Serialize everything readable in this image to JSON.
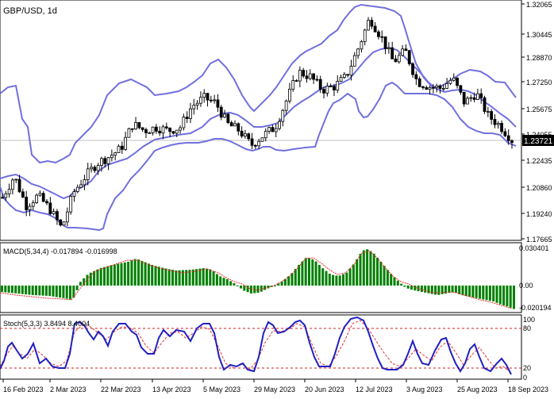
{
  "chart_title": "GBP/USD, 1d",
  "colors": {
    "background": "#ffffff",
    "price_line": "#000000",
    "bollinger": "#7070e0",
    "macd_hist": "#008000",
    "macd_signal": "#e03030",
    "stoch_main": "#2020c0",
    "stoch_signal": "#e03030",
    "level_line": "#d02020",
    "current_price_bg": "#000000",
    "current_price_text": "#ffffff"
  },
  "price_axis": {
    "ticks": [
      "1.32065",
      "1.30445",
      "1.28870",
      "1.27250",
      "1.25675",
      "1.24055",
      "1.22435",
      "1.20860",
      "1.19240",
      "1.17665"
    ],
    "current_price": "1.23721"
  },
  "x_axis": {
    "labels": [
      "16 Feb 2023",
      "2 Mar 2023",
      "22 Mar 2023",
      "13 Apr 2023",
      "5 May 2023",
      "29 May 2023",
      "20 Jun 2023",
      "12 Jul 2023",
      "3 Aug 2023",
      "25 Aug 2023",
      "18 Sep 2023"
    ]
  },
  "macd": {
    "label": "MACD(5,34,4) -0.017894 -0.016998",
    "ticks": [
      "0.030401",
      "0.00",
      "-0.020194"
    ]
  },
  "stoch": {
    "label": "Stoch(5,3,3) 3.8494 8.4004",
    "ticks": [
      "100",
      "80",
      "20",
      "0"
    ],
    "levels": [
      80,
      20
    ]
  },
  "chart_data": {
    "type": "candlestick",
    "title": "GBP/USD, 1d",
    "y_range": [
      1.17665,
      1.32065
    ],
    "x_range": [
      "16 Feb 2023",
      "18 Sep 2023"
    ],
    "last_close": 1.23721,
    "close_path": [
      {
        "x": "16 Feb 2023",
        "y": 1.202
      },
      {
        "x": "20 Feb 2023",
        "y": 1.215
      },
      {
        "x": "24 Feb 2023",
        "y": 1.197
      },
      {
        "x": "28 Feb 2023",
        "y": 1.203
      },
      {
        "x": "2 Mar 2023",
        "y": 1.195
      },
      {
        "x": "8 Mar 2023",
        "y": 1.183
      },
      {
        "x": "10 Mar 2023",
        "y": 1.205
      },
      {
        "x": "14 Mar 2023",
        "y": 1.215
      },
      {
        "x": "20 Mar 2023",
        "y": 1.223
      },
      {
        "x": "24 Mar 2023",
        "y": 1.227
      },
      {
        "x": "28 Mar 2023",
        "y": 1.232
      },
      {
        "x": "3 Apr 2023",
        "y": 1.247
      },
      {
        "x": "7 Apr 2023",
        "y": 1.243
      },
      {
        "x": "13 Apr 2023",
        "y": 1.245
      },
      {
        "x": "19 Apr 2023",
        "y": 1.243
      },
      {
        "x": "25 Apr 2023",
        "y": 1.245
      },
      {
        "x": "1 May 2023",
        "y": 1.258
      },
      {
        "x": "5 May 2023",
        "y": 1.263
      },
      {
        "x": "10 May 2023",
        "y": 1.26
      },
      {
        "x": "16 May 2023",
        "y": 1.247
      },
      {
        "x": "22 May 2023",
        "y": 1.243
      },
      {
        "x": "26 May 2023",
        "y": 1.234
      },
      {
        "x": "1 Jun 2023",
        "y": 1.24
      },
      {
        "x": "7 Jun 2023",
        "y": 1.245
      },
      {
        "x": "13 Jun 2023",
        "y": 1.262
      },
      {
        "x": "16 Jun 2023",
        "y": 1.279
      },
      {
        "x": "20 Jun 2023",
        "y": 1.276
      },
      {
        "x": "26 Jun 2023",
        "y": 1.268
      },
      {
        "x": "30 Jun 2023",
        "y": 1.27
      },
      {
        "x": "6 Jul 2023",
        "y": 1.276
      },
      {
        "x": "10 Jul 2023",
        "y": 1.293
      },
      {
        "x": "14 Jul 2023",
        "y": 1.312
      },
      {
        "x": "18 Jul 2023",
        "y": 1.3
      },
      {
        "x": "24 Jul 2023",
        "y": 1.285
      },
      {
        "x": "28 Jul 2023",
        "y": 1.292
      },
      {
        "x": "3 Aug 2023",
        "y": 1.273
      },
      {
        "x": "9 Aug 2023",
        "y": 1.27
      },
      {
        "x": "15 Aug 2023",
        "y": 1.269
      },
      {
        "x": "21 Aug 2023",
        "y": 1.275
      },
      {
        "x": "25 Aug 2023",
        "y": 1.26
      },
      {
        "x": "31 Aug 2023",
        "y": 1.266
      },
      {
        "x": "6 Sep 2023",
        "y": 1.252
      },
      {
        "x": "12 Sep 2023",
        "y": 1.246
      },
      {
        "x": "18 Sep 2023",
        "y": 1.23721
      }
    ],
    "indicators": [
      {
        "name": "MACD(5,34,4)",
        "main": -0.017894,
        "signal": -0.016998
      },
      {
        "name": "Stoch(5,3,3)",
        "main": 3.8494,
        "signal": 8.4004
      }
    ]
  }
}
